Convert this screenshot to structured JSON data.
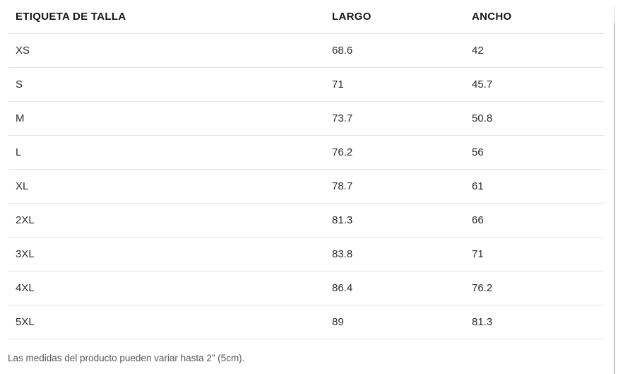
{
  "table": {
    "headers": [
      "ETIQUETA DE TALLA",
      "LARGO",
      "ANCHO"
    ],
    "rows": [
      {
        "size": "XS",
        "largo": "68.6",
        "ancho": "42"
      },
      {
        "size": "S",
        "largo": "71",
        "ancho": "45.7"
      },
      {
        "size": "M",
        "largo": "73.7",
        "ancho": "50.8"
      },
      {
        "size": "L",
        "largo": "76.2",
        "ancho": "56"
      },
      {
        "size": "XL",
        "largo": "78.7",
        "ancho": "61"
      },
      {
        "size": "2XL",
        "largo": "81.3",
        "ancho": "66"
      },
      {
        "size": "3XL",
        "largo": "83.8",
        "ancho": "71"
      },
      {
        "size": "4XL",
        "largo": "86.4",
        "ancho": "76.2"
      },
      {
        "size": "5XL",
        "largo": "89",
        "ancho": "81.3"
      }
    ]
  },
  "footer": {
    "note": "Las medidas del producto pueden variar hasta 2” (5cm)."
  }
}
